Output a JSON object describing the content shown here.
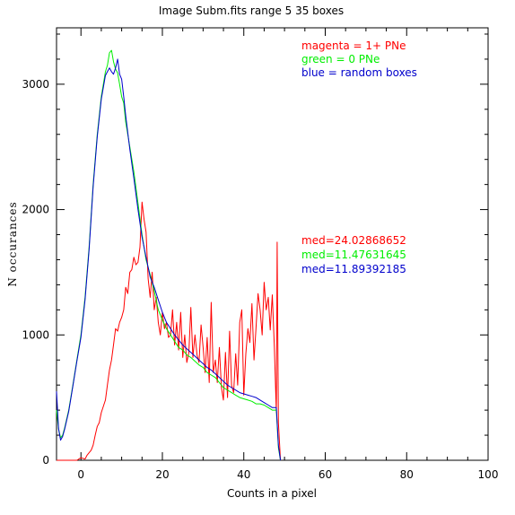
{
  "chart_data": {
    "type": "line",
    "title": "Image Subm.fits   range 5    35 boxes",
    "xlabel": "Counts in a pixel",
    "ylabel": "N  occurances",
    "xlim": [
      -6,
      100
    ],
    "ylim": [
      0,
      3450
    ],
    "xticks": [
      0,
      20,
      40,
      60,
      80,
      100
    ],
    "yticks": [
      0,
      1000,
      2000,
      3000
    ],
    "grid": false,
    "legend": [
      {
        "label": "magenta = 1+ PNe",
        "color": "#ff0000"
      },
      {
        "label": "green = 0 PNe",
        "color": "#00ee00"
      },
      {
        "label": "blue = random boxes",
        "color": "#0000cc"
      }
    ],
    "medians": [
      {
        "label": "med=24.02868652",
        "color": "#ff0000"
      },
      {
        "label": "med=11.47631645",
        "color": "#00ee00"
      },
      {
        "label": "med=11.89392185",
        "color": "#0000cc"
      }
    ],
    "series": [
      {
        "color": "#ff0000",
        "x": [
          -6,
          -5,
          -4,
          -3,
          -2,
          -1,
          0,
          1,
          1.5,
          2,
          2.5,
          3,
          3.5,
          4,
          4.5,
          5,
          5.5,
          6,
          6.5,
          7,
          7.5,
          8,
          8.5,
          9,
          9.5,
          10,
          10.5,
          11,
          11.5,
          12,
          12.5,
          13,
          13.5,
          14,
          14.5,
          15,
          15.5,
          16,
          16.5,
          17,
          17.5,
          18,
          18.5,
          19,
          19.5,
          20,
          20.5,
          21,
          21.5,
          22,
          22.5,
          23,
          23.5,
          24,
          24.5,
          25,
          25.5,
          26,
          26.5,
          27,
          27.5,
          28,
          28.5,
          29,
          29.5,
          30,
          30.5,
          31,
          31.5,
          32,
          32.5,
          33,
          33.5,
          34,
          34.5,
          35,
          35.5,
          36,
          36.5,
          37,
          37.5,
          38,
          38.5,
          39,
          39.5,
          40,
          40.5,
          41,
          41.5,
          42,
          42.5,
          43,
          43.5,
          44,
          44.5,
          45,
          45.5,
          46,
          46.5,
          47,
          47.5,
          48,
          48.2,
          48.5,
          49
        ],
        "values": [
          0,
          0,
          0,
          0,
          0,
          0,
          20,
          10,
          40,
          60,
          80,
          120,
          200,
          270,
          300,
          380,
          430,
          480,
          600,
          720,
          800,
          920,
          1050,
          1030,
          1100,
          1140,
          1200,
          1380,
          1330,
          1500,
          1520,
          1620,
          1560,
          1580,
          1700,
          2060,
          1920,
          1820,
          1450,
          1300,
          1500,
          1200,
          1300,
          1100,
          1000,
          1180,
          1050,
          1100,
          980,
          1000,
          1200,
          920,
          1100,
          880,
          1180,
          820,
          1000,
          780,
          860,
          1220,
          820,
          1000,
          840,
          780,
          1080,
          900,
          700,
          980,
          620,
          1260,
          700,
          800,
          620,
          900,
          580,
          480,
          860,
          500,
          1030,
          600,
          540,
          850,
          600,
          1100,
          1200,
          520,
          850,
          1050,
          940,
          1250,
          800,
          1050,
          1330,
          1200,
          1000,
          1420,
          1200,
          1300,
          1040,
          1320,
          900,
          380,
          1740,
          300,
          0
        ]
      },
      {
        "color": "#00ee00",
        "x": [
          -6,
          -5.5,
          -5,
          -4.5,
          -4,
          -3,
          -2,
          -1,
          0,
          1,
          2,
          3,
          4,
          5,
          6,
          6.5,
          7,
          7.5,
          8,
          8.5,
          9,
          9.5,
          10,
          10.5,
          11,
          12,
          13,
          14,
          15,
          16,
          17,
          18,
          19,
          20,
          21,
          22,
          23,
          24,
          25,
          26,
          27,
          28,
          29,
          30,
          31,
          32,
          33,
          34,
          35,
          36,
          37,
          38,
          39,
          40,
          41,
          42,
          43,
          44,
          45,
          46,
          47,
          48,
          48.5,
          49
        ],
        "values": [
          400,
          250,
          180,
          200,
          260,
          400,
          600,
          800,
          1000,
          1300,
          1700,
          2200,
          2600,
          2900,
          3100,
          3150,
          3250,
          3270,
          3180,
          3120,
          3090,
          3000,
          2900,
          2850,
          2700,
          2500,
          2300,
          2050,
          1800,
          1600,
          1480,
          1350,
          1200,
          1120,
          1050,
          1000,
          950,
          900,
          880,
          840,
          820,
          790,
          760,
          740,
          700,
          680,
          660,
          620,
          580,
          560,
          540,
          520,
          500,
          490,
          480,
          470,
          450,
          450,
          440,
          420,
          400,
          400,
          100,
          0
        ]
      },
      {
        "color": "#0000cc",
        "x": [
          -6,
          -5.5,
          -5,
          -4.5,
          -4,
          -3,
          -2,
          -1,
          0,
          1,
          2,
          3,
          4,
          5,
          6,
          6.5,
          7,
          7.5,
          8,
          8.5,
          9,
          9.5,
          10,
          10.5,
          11,
          12,
          13,
          14,
          15,
          16,
          17,
          18,
          19,
          20,
          21,
          22,
          23,
          24,
          25,
          26,
          27,
          28,
          29,
          30,
          31,
          32,
          33,
          34,
          35,
          36,
          37,
          38,
          39,
          40,
          41,
          42,
          43,
          44,
          45,
          46,
          47,
          48,
          48.5,
          49
        ],
        "values": [
          550,
          250,
          160,
          190,
          250,
          390,
          590,
          790,
          980,
          1280,
          1680,
          2180,
          2580,
          2880,
          3070,
          3100,
          3130,
          3100,
          3080,
          3130,
          3200,
          3080,
          3040,
          2900,
          2750,
          2480,
          2250,
          2000,
          1780,
          1620,
          1460,
          1380,
          1280,
          1180,
          1100,
          1050,
          1000,
          960,
          920,
          890,
          860,
          830,
          800,
          770,
          740,
          720,
          690,
          660,
          630,
          600,
          580,
          560,
          540,
          530,
          520,
          510,
          500,
          480,
          460,
          440,
          420,
          420,
          120,
          0
        ]
      }
    ]
  }
}
